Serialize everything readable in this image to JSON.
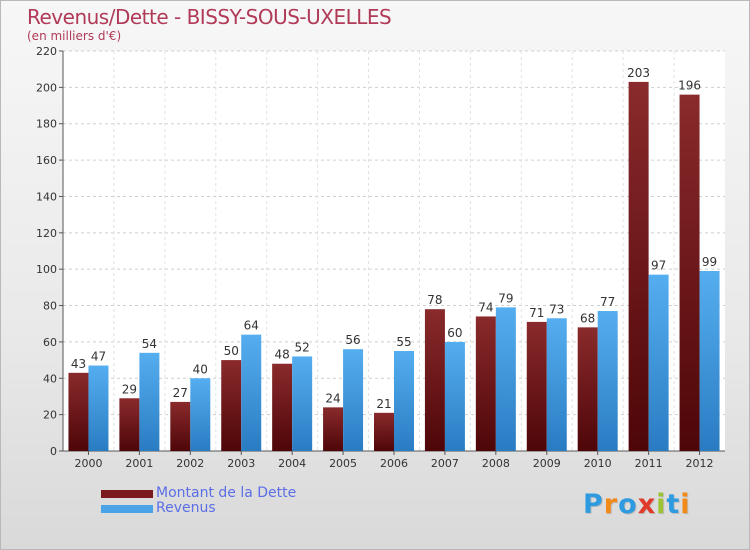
{
  "title": "Revenus/Dette - BISSY-SOUS-UXELLES",
  "subtitle": "(en milliers d'€)",
  "colors": {
    "debt": "#7a1a1c",
    "debt_dark": "#4e0a0c",
    "revenue": "#4aa3e6",
    "revenue_dark": "#2c7fc6",
    "title": "#b03a57",
    "legend_text": "#5b6ee6"
  },
  "legend": {
    "debt_label": "Montant de la Dette",
    "revenue_label": "Revenus"
  },
  "logo": {
    "text": "Proxiti"
  },
  "chart_data": {
    "type": "bar",
    "categories": [
      "2000",
      "2001",
      "2002",
      "2003",
      "2004",
      "2005",
      "2006",
      "2007",
      "2008",
      "2009",
      "2010",
      "2011",
      "2012"
    ],
    "series": [
      {
        "name": "Montant de la Dette",
        "values": [
          43,
          29,
          27,
          50,
          48,
          24,
          21,
          78,
          74,
          71,
          68,
          203,
          196
        ]
      },
      {
        "name": "Revenus",
        "values": [
          47,
          54,
          40,
          64,
          52,
          56,
          55,
          60,
          79,
          73,
          77,
          97,
          99
        ]
      }
    ],
    "ylim": [
      0,
      220
    ],
    "yticks": [
      0,
      20,
      40,
      60,
      80,
      100,
      120,
      140,
      160,
      180,
      200,
      220
    ],
    "grid": true,
    "legend_position": "bottom-left"
  }
}
